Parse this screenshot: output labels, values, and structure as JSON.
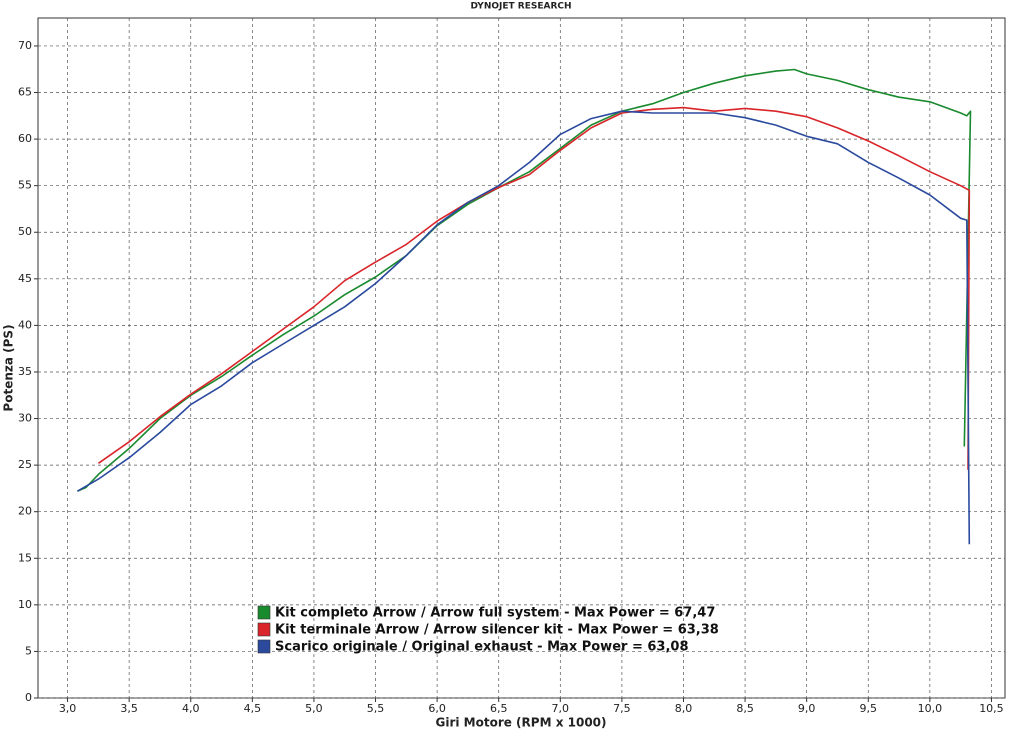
{
  "chart_data": {
    "type": "line",
    "title": "DYNOJET RESEARCH",
    "x_label": "Giri Motore (RPM x 1000)",
    "y_label": "Potenza (PS)",
    "xlim": [
      2.76,
      10.61
    ],
    "ylim": [
      0,
      73
    ],
    "xticks": [
      {
        "value": 3,
        "label": "3,0"
      },
      {
        "value": 3.5,
        "label": "3,5"
      },
      {
        "value": 4,
        "label": "4,0"
      },
      {
        "value": 4.5,
        "label": "4,5"
      },
      {
        "value": 5,
        "label": "5,0"
      },
      {
        "value": 5.5,
        "label": "5,5"
      },
      {
        "value": 6,
        "label": "6,0"
      },
      {
        "value": 6.5,
        "label": "6,5"
      },
      {
        "value": 7,
        "label": "7,0"
      },
      {
        "value": 7.5,
        "label": "7,5"
      },
      {
        "value": 8,
        "label": "8,0"
      },
      {
        "value": 8.5,
        "label": "8,5"
      },
      {
        "value": 9,
        "label": "9,0"
      },
      {
        "value": 9.5,
        "label": "9,5"
      },
      {
        "value": 10,
        "label": "10,0"
      },
      {
        "value": 10.5,
        "label": "10,5"
      }
    ],
    "yticks": [
      0,
      5,
      10,
      15,
      20,
      25,
      30,
      35,
      40,
      45,
      50,
      55,
      60,
      65,
      70
    ],
    "grid": true,
    "series": [
      {
        "name": "Kit completo Arrow / Arrow full system - Max Power = 67,47",
        "color": "#1a8a2e",
        "x": [
          3.08,
          3.15,
          3.25,
          3.5,
          3.75,
          4.0,
          4.25,
          4.5,
          4.75,
          5.0,
          5.25,
          5.5,
          5.75,
          6.0,
          6.25,
          6.5,
          6.75,
          7.0,
          7.25,
          7.5,
          7.75,
          8.0,
          8.25,
          8.5,
          8.75,
          8.9,
          9.0,
          9.25,
          9.5,
          9.75,
          10.0,
          10.25,
          10.3,
          10.33,
          10.28
        ],
        "values": [
          22.2,
          22.6,
          24,
          26.8,
          30,
          32.5,
          34.5,
          36.8,
          39,
          41,
          43.3,
          45.2,
          47.5,
          50.7,
          53,
          54.8,
          56.5,
          59,
          61.5,
          63,
          63.8,
          65,
          66,
          66.8,
          67.3,
          67.47,
          67,
          66.3,
          65.3,
          64.5,
          64,
          62.8,
          62.5,
          63,
          27
        ]
      },
      {
        "name": "Kit terminale Arrow / Arrow silencer kit - Max Power = 63,38",
        "color": "#d9252a",
        "x": [
          3.25,
          3.5,
          3.75,
          4.0,
          4.25,
          4.5,
          4.75,
          5.0,
          5.25,
          5.5,
          5.75,
          6.0,
          6.25,
          6.5,
          6.75,
          7.0,
          7.25,
          7.5,
          7.75,
          8.0,
          8.25,
          8.5,
          8.75,
          9.0,
          9.25,
          9.5,
          9.75,
          10.0,
          10.25,
          10.32,
          10.31
        ],
        "values": [
          25.2,
          27.5,
          30.2,
          32.6,
          34.8,
          37.2,
          39.6,
          42,
          44.8,
          46.8,
          48.7,
          51.2,
          53.2,
          54.8,
          56.2,
          58.8,
          61.2,
          62.8,
          63.2,
          63.38,
          63,
          63.3,
          63,
          62.4,
          61.2,
          59.8,
          58.2,
          56.5,
          55,
          54.5,
          24.5
        ]
      },
      {
        "name": "Scarico originale / Original exhaust - Max Power = 63,08",
        "color": "#2b4a9e",
        "x": [
          3.08,
          3.25,
          3.5,
          3.75,
          4.0,
          4.25,
          4.5,
          4.75,
          5.0,
          5.25,
          5.5,
          5.75,
          6.0,
          6.25,
          6.5,
          6.75,
          7.0,
          7.25,
          7.5,
          7.75,
          8.0,
          8.25,
          8.5,
          8.75,
          9.0,
          9.25,
          9.5,
          9.75,
          10.0,
          10.25,
          10.3,
          10.32
        ],
        "values": [
          22.2,
          23.5,
          25.8,
          28.5,
          31.5,
          33.5,
          36,
          38,
          40,
          42,
          44.5,
          47.5,
          50.8,
          53.2,
          55,
          57.5,
          60.5,
          62.2,
          63,
          62.8,
          62.8,
          62.8,
          62.3,
          61.5,
          60.3,
          59.5,
          57.5,
          55.8,
          54,
          51.5,
          51.3,
          16.5
        ]
      }
    ]
  }
}
